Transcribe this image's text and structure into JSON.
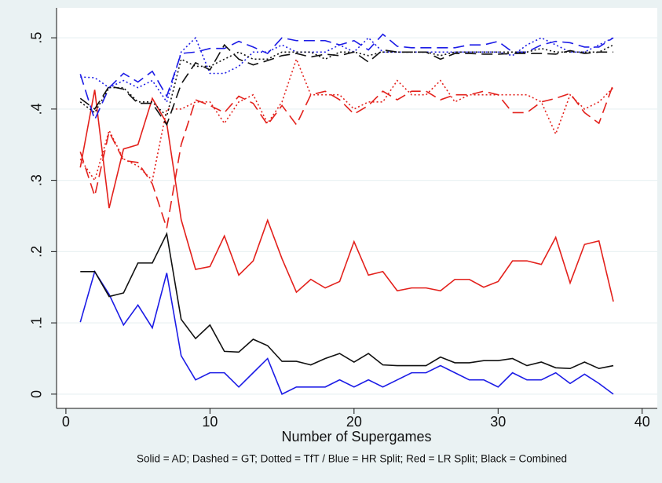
{
  "chart_data": {
    "type": "line",
    "xlabel": "Number of Supergames",
    "caption": "Solid = AD; Dashed = GT; Dotted = TfT / Blue = HR Split; Red = LR Split; Black = Combined",
    "x": [
      1,
      2,
      3,
      4,
      5,
      6,
      7,
      8,
      9,
      10,
      11,
      12,
      13,
      14,
      15,
      16,
      17,
      18,
      19,
      20,
      21,
      22,
      23,
      24,
      25,
      26,
      27,
      28,
      29,
      30,
      31,
      32,
      33,
      34,
      35,
      36,
      37,
      38
    ],
    "xlim": [
      -0.65,
      41.05
    ],
    "xticks": [
      0,
      10,
      20,
      30,
      40
    ],
    "ylim": [
      -0.02,
      0.542
    ],
    "yticks": [
      0,
      {
        "value": 0.1,
        "label": ".1"
      },
      {
        "value": 0.2,
        "label": ".2"
      },
      {
        "value": 0.3,
        "label": ".3"
      },
      {
        "value": 0.4,
        "label": ".4"
      },
      {
        "value": 0.5,
        "label": ".5"
      }
    ],
    "grid": true,
    "series": [
      {
        "color": "#1c1ce6",
        "dash": "solid",
        "values": [
          0.101,
          0.172,
          0.14,
          0.097,
          0.125,
          0.093,
          0.17,
          0.054,
          0.02,
          0.03,
          0.03,
          0.01,
          0.03,
          0.05,
          0.0,
          0.01,
          0.01,
          0.01,
          0.02,
          0.01,
          0.02,
          0.01,
          0.02,
          0.03,
          0.03,
          0.04,
          0.03,
          0.02,
          0.02,
          0.01,
          0.03,
          0.02,
          0.02,
          0.03,
          0.015,
          0.028,
          0.015,
          0.0
        ]
      },
      {
        "color": "#111111",
        "dash": "solid",
        "values": [
          0.172,
          0.172,
          0.137,
          0.142,
          0.184,
          0.184,
          0.225,
          0.105,
          0.078,
          0.097,
          0.06,
          0.059,
          0.077,
          0.068,
          0.046,
          0.046,
          0.041,
          0.05,
          0.057,
          0.045,
          0.057,
          0.041,
          0.04,
          0.04,
          0.04,
          0.052,
          0.044,
          0.044,
          0.047,
          0.047,
          0.05,
          0.04,
          0.045,
          0.037,
          0.036,
          0.045,
          0.036,
          0.04
        ]
      },
      {
        "color": "#e3211c",
        "dash": "solid",
        "values": [
          0.318,
          0.427,
          0.261,
          0.344,
          0.35,
          0.415,
          0.38,
          0.245,
          0.175,
          0.179,
          0.222,
          0.167,
          0.187,
          0.244,
          0.19,
          0.143,
          0.161,
          0.149,
          0.158,
          0.214,
          0.167,
          0.172,
          0.145,
          0.149,
          0.149,
          0.145,
          0.161,
          0.161,
          0.15,
          0.158,
          0.187,
          0.187,
          0.182,
          0.22,
          0.156,
          0.21,
          0.215,
          0.13
        ]
      },
      {
        "color": "#e3211c",
        "dash": "dashed",
        "values": [
          0.34,
          0.278,
          0.368,
          0.328,
          0.325,
          0.295,
          0.233,
          0.35,
          0.413,
          0.405,
          0.395,
          0.418,
          0.408,
          0.378,
          0.405,
          0.378,
          0.42,
          0.425,
          0.413,
          0.393,
          0.405,
          0.425,
          0.413,
          0.425,
          0.425,
          0.413,
          0.42,
          0.42,
          0.425,
          0.42,
          0.395,
          0.395,
          0.41,
          0.415,
          0.422,
          0.395,
          0.38,
          0.435
        ]
      },
      {
        "color": "#e3211c",
        "dash": "dotted",
        "values": [
          0.33,
          0.3,
          0.37,
          0.33,
          0.32,
          0.3,
          0.4,
          0.4,
          0.41,
          0.41,
          0.38,
          0.41,
          0.42,
          0.38,
          0.41,
          0.47,
          0.42,
          0.42,
          0.42,
          0.4,
          0.41,
          0.41,
          0.44,
          0.42,
          0.42,
          0.44,
          0.41,
          0.42,
          0.42,
          0.42,
          0.42,
          0.42,
          0.41,
          0.365,
          0.42,
          0.4,
          0.41,
          0.43
        ]
      },
      {
        "color": "#1c1ce6",
        "dash": "dashed",
        "values": [
          0.449,
          0.385,
          0.43,
          0.45,
          0.438,
          0.453,
          0.418,
          0.478,
          0.48,
          0.485,
          0.485,
          0.495,
          0.487,
          0.478,
          0.5,
          0.496,
          0.496,
          0.496,
          0.49,
          0.496,
          0.483,
          0.505,
          0.488,
          0.486,
          0.486,
          0.486,
          0.486,
          0.49,
          0.49,
          0.495,
          0.48,
          0.48,
          0.49,
          0.495,
          0.493,
          0.487,
          0.487,
          0.5
        ]
      },
      {
        "color": "#1c1ce6",
        "dash": "dotted",
        "values": [
          0.445,
          0.444,
          0.43,
          0.44,
          0.43,
          0.44,
          0.41,
          0.48,
          0.5,
          0.45,
          0.45,
          0.46,
          0.48,
          0.48,
          0.49,
          0.48,
          0.48,
          0.48,
          0.49,
          0.48,
          0.5,
          0.48,
          0.48,
          0.48,
          0.48,
          0.48,
          0.48,
          0.48,
          0.48,
          0.48,
          0.475,
          0.49,
          0.5,
          0.49,
          0.48,
          0.48,
          0.49,
          0.5
        ]
      },
      {
        "color": "#111111",
        "dash": "dashed",
        "values": [
          0.415,
          0.4,
          0.432,
          0.428,
          0.408,
          0.408,
          0.378,
          0.435,
          0.465,
          0.455,
          0.49,
          0.47,
          0.462,
          0.468,
          0.475,
          0.478,
          0.473,
          0.477,
          0.475,
          0.48,
          0.466,
          0.483,
          0.48,
          0.48,
          0.48,
          0.47,
          0.478,
          0.478,
          0.477,
          0.477,
          0.478,
          0.478,
          0.478,
          0.477,
          0.482,
          0.478,
          0.48,
          0.48
        ]
      },
      {
        "color": "#111111",
        "dash": "dotted",
        "values": [
          0.41,
          0.395,
          0.43,
          0.43,
          0.41,
          0.41,
          0.39,
          0.47,
          0.46,
          0.46,
          0.47,
          0.48,
          0.47,
          0.47,
          0.48,
          0.48,
          0.48,
          0.47,
          0.48,
          0.48,
          0.475,
          0.48,
          0.48,
          0.48,
          0.48,
          0.475,
          0.48,
          0.48,
          0.48,
          0.48,
          0.48,
          0.48,
          0.485,
          0.48,
          0.48,
          0.48,
          0.48,
          0.49
        ]
      }
    ]
  }
}
